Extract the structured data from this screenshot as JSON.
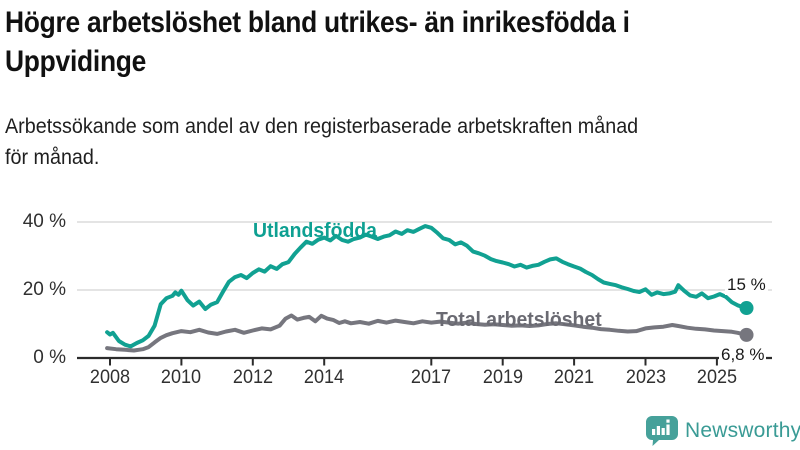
{
  "header": {
    "title_lines": [
      "Högre arbetslöshet bland utrikes- än inrikesfödda i",
      "Uppvidinge"
    ],
    "subtitle_lines": [
      "Arbetssökande som andel av den registerbaserade arbetskraften månad",
      "för månad."
    ]
  },
  "chart_data": {
    "type": "line",
    "title": "Högre arbetslöshet bland utrikes- än inrikesfödda i Uppvidinge",
    "subtitle": "Arbetssökande som andel av den registerbaserade arbetskraften månad för månad.",
    "unit": "%",
    "grid": true,
    "legend_position": "inline-labels",
    "x_axis": {
      "range_years": [
        2007.75,
        2026.3
      ],
      "ticks": [
        {
          "year": 2008,
          "label": "2008"
        },
        {
          "year": 2010,
          "label": "2010"
        },
        {
          "year": 2012,
          "label": "2012"
        },
        {
          "year": 2014,
          "label": "2014"
        },
        {
          "year": 2017,
          "label": "2017"
        },
        {
          "year": 2019,
          "label": "2019"
        },
        {
          "year": 2021,
          "label": "2021"
        },
        {
          "year": 2023,
          "label": "2023"
        },
        {
          "year": 2025,
          "label": "2025"
        }
      ]
    },
    "y_axis": {
      "range": [
        0,
        44
      ],
      "ticks": [
        {
          "value": 0,
          "label": "0 %"
        },
        {
          "value": 20,
          "label": "20 %"
        },
        {
          "value": 40,
          "label": "40 %"
        }
      ],
      "gridlines": [
        20,
        40
      ]
    },
    "series": [
      {
        "name": "Utlandsfödda",
        "color": "#11a192",
        "end_label": "15 %",
        "end_value": 15,
        "points": [
          [
            2007.92,
            7.6
          ],
          [
            2008.0,
            6.9
          ],
          [
            2008.08,
            7.4
          ],
          [
            2008.25,
            5.0
          ],
          [
            2008.42,
            3.9
          ],
          [
            2008.58,
            3.4
          ],
          [
            2008.75,
            4.4
          ],
          [
            2008.92,
            5.2
          ],
          [
            2009.08,
            6.5
          ],
          [
            2009.25,
            9.5
          ],
          [
            2009.42,
            15.8
          ],
          [
            2009.58,
            17.6
          ],
          [
            2009.75,
            18.3
          ],
          [
            2009.83,
            19.3
          ],
          [
            2009.92,
            18.6
          ],
          [
            2010.0,
            19.8
          ],
          [
            2010.17,
            17.0
          ],
          [
            2010.33,
            15.4
          ],
          [
            2010.5,
            16.6
          ],
          [
            2010.67,
            14.4
          ],
          [
            2010.83,
            15.7
          ],
          [
            2011.0,
            16.4
          ],
          [
            2011.17,
            19.6
          ],
          [
            2011.33,
            22.4
          ],
          [
            2011.5,
            23.8
          ],
          [
            2011.67,
            24.4
          ],
          [
            2011.83,
            23.5
          ],
          [
            2012.0,
            25.0
          ],
          [
            2012.17,
            26.1
          ],
          [
            2012.33,
            25.4
          ],
          [
            2012.5,
            27.0
          ],
          [
            2012.67,
            26.2
          ],
          [
            2012.83,
            27.6
          ],
          [
            2013.0,
            28.2
          ],
          [
            2013.17,
            30.6
          ],
          [
            2013.33,
            32.4
          ],
          [
            2013.5,
            34.2
          ],
          [
            2013.67,
            33.6
          ],
          [
            2013.83,
            34.8
          ],
          [
            2014.0,
            35.4
          ],
          [
            2014.17,
            34.6
          ],
          [
            2014.33,
            35.9
          ],
          [
            2014.5,
            34.7
          ],
          [
            2014.67,
            34.2
          ],
          [
            2014.83,
            35.0
          ],
          [
            2015.0,
            35.4
          ],
          [
            2015.17,
            36.3
          ],
          [
            2015.33,
            35.7
          ],
          [
            2015.5,
            35.0
          ],
          [
            2015.67,
            35.7
          ],
          [
            2015.83,
            36.1
          ],
          [
            2016.0,
            37.2
          ],
          [
            2016.17,
            36.5
          ],
          [
            2016.33,
            37.6
          ],
          [
            2016.5,
            37.1
          ],
          [
            2016.67,
            38.0
          ],
          [
            2016.83,
            38.8
          ],
          [
            2017.0,
            38.3
          ],
          [
            2017.17,
            36.8
          ],
          [
            2017.33,
            35.2
          ],
          [
            2017.5,
            34.7
          ],
          [
            2017.67,
            33.4
          ],
          [
            2017.83,
            34.0
          ],
          [
            2018.0,
            33.0
          ],
          [
            2018.17,
            31.3
          ],
          [
            2018.33,
            30.8
          ],
          [
            2018.5,
            30.1
          ],
          [
            2018.67,
            29.1
          ],
          [
            2018.83,
            28.5
          ],
          [
            2019.0,
            28.1
          ],
          [
            2019.17,
            27.6
          ],
          [
            2019.33,
            26.9
          ],
          [
            2019.5,
            27.4
          ],
          [
            2019.67,
            26.6
          ],
          [
            2019.83,
            27.1
          ],
          [
            2020.0,
            27.4
          ],
          [
            2020.17,
            28.3
          ],
          [
            2020.33,
            29.0
          ],
          [
            2020.5,
            29.3
          ],
          [
            2020.67,
            28.3
          ],
          [
            2020.83,
            27.6
          ],
          [
            2021.0,
            26.9
          ],
          [
            2021.17,
            26.3
          ],
          [
            2021.33,
            25.3
          ],
          [
            2021.5,
            24.4
          ],
          [
            2021.67,
            23.2
          ],
          [
            2021.83,
            22.2
          ],
          [
            2022.0,
            21.8
          ],
          [
            2022.17,
            21.4
          ],
          [
            2022.33,
            20.8
          ],
          [
            2022.5,
            20.3
          ],
          [
            2022.67,
            19.7
          ],
          [
            2022.83,
            19.4
          ],
          [
            2023.0,
            20.2
          ],
          [
            2023.17,
            18.6
          ],
          [
            2023.33,
            19.3
          ],
          [
            2023.5,
            18.8
          ],
          [
            2023.67,
            19.0
          ],
          [
            2023.83,
            19.5
          ],
          [
            2023.92,
            21.4
          ],
          [
            2024.08,
            19.8
          ],
          [
            2024.25,
            18.4
          ],
          [
            2024.42,
            18.0
          ],
          [
            2024.58,
            19.0
          ],
          [
            2024.75,
            17.6
          ],
          [
            2024.92,
            18.1
          ],
          [
            2025.08,
            18.8
          ],
          [
            2025.25,
            18.0
          ],
          [
            2025.42,
            16.4
          ],
          [
            2025.58,
            15.5
          ],
          [
            2025.75,
            14.9
          ],
          [
            2025.83,
            14.7
          ]
        ]
      },
      {
        "name": "Total arbetslöshet",
        "color": "#76767e",
        "end_label": "6,8 %",
        "end_value": 6.8,
        "points": [
          [
            2007.92,
            2.9
          ],
          [
            2008.17,
            2.6
          ],
          [
            2008.42,
            2.4
          ],
          [
            2008.67,
            2.2
          ],
          [
            2008.92,
            2.6
          ],
          [
            2009.08,
            3.2
          ],
          [
            2009.25,
            4.6
          ],
          [
            2009.42,
            5.9
          ],
          [
            2009.58,
            6.7
          ],
          [
            2009.75,
            7.3
          ],
          [
            2010.0,
            7.9
          ],
          [
            2010.25,
            7.6
          ],
          [
            2010.5,
            8.3
          ],
          [
            2010.75,
            7.5
          ],
          [
            2011.0,
            7.1
          ],
          [
            2011.25,
            7.8
          ],
          [
            2011.5,
            8.3
          ],
          [
            2011.75,
            7.4
          ],
          [
            2012.0,
            8.1
          ],
          [
            2012.25,
            8.7
          ],
          [
            2012.5,
            8.4
          ],
          [
            2012.75,
            9.5
          ],
          [
            2012.92,
            11.6
          ],
          [
            2013.08,
            12.5
          ],
          [
            2013.25,
            11.3
          ],
          [
            2013.42,
            11.8
          ],
          [
            2013.58,
            12.1
          ],
          [
            2013.75,
            10.8
          ],
          [
            2013.92,
            12.4
          ],
          [
            2014.08,
            11.6
          ],
          [
            2014.25,
            11.2
          ],
          [
            2014.42,
            10.3
          ],
          [
            2014.58,
            10.8
          ],
          [
            2014.75,
            10.2
          ],
          [
            2015.0,
            10.6
          ],
          [
            2015.25,
            10.1
          ],
          [
            2015.5,
            10.9
          ],
          [
            2015.75,
            10.4
          ],
          [
            2016.0,
            11.0
          ],
          [
            2016.25,
            10.6
          ],
          [
            2016.5,
            10.2
          ],
          [
            2016.75,
            10.8
          ],
          [
            2017.0,
            10.4
          ],
          [
            2017.25,
            10.7
          ],
          [
            2017.5,
            10.4
          ],
          [
            2017.75,
            10.1
          ],
          [
            2018.0,
            10.4
          ],
          [
            2018.25,
            10.0
          ],
          [
            2018.5,
            9.8
          ],
          [
            2018.75,
            9.9
          ],
          [
            2019.0,
            9.7
          ],
          [
            2019.25,
            9.5
          ],
          [
            2019.5,
            9.6
          ],
          [
            2019.75,
            9.4
          ],
          [
            2020.0,
            9.6
          ],
          [
            2020.25,
            10.0
          ],
          [
            2020.5,
            10.2
          ],
          [
            2020.75,
            9.9
          ],
          [
            2021.0,
            9.6
          ],
          [
            2021.25,
            9.2
          ],
          [
            2021.5,
            8.9
          ],
          [
            2021.75,
            8.5
          ],
          [
            2022.0,
            8.3
          ],
          [
            2022.25,
            8.0
          ],
          [
            2022.5,
            7.8
          ],
          [
            2022.75,
            7.9
          ],
          [
            2023.0,
            8.7
          ],
          [
            2023.25,
            9.0
          ],
          [
            2023.5,
            9.2
          ],
          [
            2023.75,
            9.7
          ],
          [
            2023.92,
            9.4
          ],
          [
            2024.17,
            8.9
          ],
          [
            2024.42,
            8.6
          ],
          [
            2024.67,
            8.4
          ],
          [
            2024.92,
            8.1
          ],
          [
            2025.17,
            7.9
          ],
          [
            2025.42,
            7.7
          ],
          [
            2025.58,
            7.4
          ],
          [
            2025.83,
            6.8
          ]
        ]
      }
    ]
  },
  "branding": {
    "logo_text": "Newsworthy",
    "logo_icon": "newsworthy-bubble-chart-icon",
    "logo_color": "#3a9b95"
  }
}
